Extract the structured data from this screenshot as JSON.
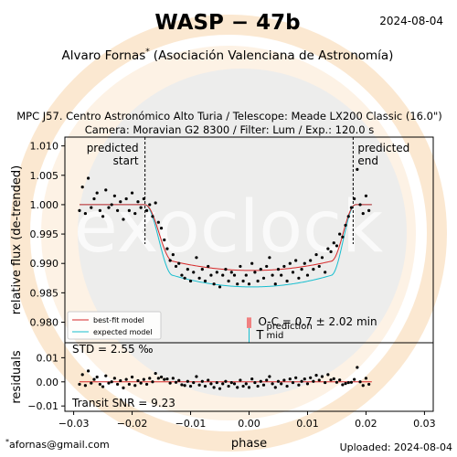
{
  "header": {
    "title": "WASP − 47b",
    "date": "2024-08-04",
    "observer": "Alvaro Fornas",
    "observer_mark": "*",
    "organization": "(Asociación Valenciana de Astronomía)",
    "obs_line1": "MPC J57. Centro Astronómico Alto Turia / Telescope: Meade LX200 Classic (16.0\")",
    "obs_line2": "Camera: Moravian G2 8300 / Filter: Lum / Exp.: 120.0 s"
  },
  "footer": {
    "email_mark": "*",
    "email": "afornas@gmail.com",
    "uploaded": "Uploaded: 2024-08-04"
  },
  "watermark": {
    "text": "exoclock",
    "logo_color": "#f5dcc0"
  },
  "chart_data": [
    {
      "type": "scatter",
      "panel": "lightcurve",
      "ylabel": "relative flux (de-trended)",
      "xlim": [
        -0.0315,
        0.0315
      ],
      "ylim": [
        0.9765,
        1.0115
      ],
      "yticks": [
        "0.980",
        "0.985",
        "0.990",
        "0.995",
        "1.000",
        "1.005",
        "1.010"
      ],
      "ytick_values": [
        0.98,
        0.985,
        0.99,
        0.995,
        1.0,
        1.005,
        1.01
      ],
      "predicted_start": {
        "x": -0.0178,
        "label_line1": "predicted",
        "label_line2": "start"
      },
      "predicted_end": {
        "x": 0.0178,
        "label_line1": "predicted",
        "label_line2": "end"
      },
      "legend": {
        "position": "lower-left",
        "entries": [
          {
            "label": "best-fit model",
            "color": "#d62728"
          },
          {
            "label": "expected model",
            "color": "#17becf"
          }
        ]
      },
      "oc_text": "O-C = 0.7 ± 2.02 min",
      "tmid": {
        "T": "T",
        "sup": "prediction",
        "sub": "mid",
        "bar_color": "#f08080",
        "line_color": "#17becf"
      },
      "model": {
        "ingress_start": -0.0178,
        "ingress_end": -0.013,
        "egress_start": 0.014,
        "egress_end": 0.0182,
        "depth_bestfit": 0.0112,
        "depth_expected": 0.014
      },
      "series": [
        {
          "name": "data",
          "color": "#000000",
          "points": [
            [
              -0.029,
              0.999
            ],
            [
              -0.0285,
              1.003
            ],
            [
              -0.028,
              0.9985
            ],
            [
              -0.0275,
              1.0045
            ],
            [
              -0.027,
              0.9995
            ],
            [
              -0.0265,
              1.001
            ],
            [
              -0.026,
              1.002
            ],
            [
              -0.0255,
              0.999
            ],
            [
              -0.025,
              0.998
            ],
            [
              -0.0245,
              1.0025
            ],
            [
              -0.024,
              0.9995
            ],
            [
              -0.0235,
              1.0
            ],
            [
              -0.023,
              1.0015
            ],
            [
              -0.0225,
              0.999
            ],
            [
              -0.022,
              1.0005
            ],
            [
              -0.0215,
              0.9975
            ],
            [
              -0.021,
              1.001
            ],
            [
              -0.0205,
              0.999
            ],
            [
              -0.02,
              1.002
            ],
            [
              -0.0195,
              0.9985
            ],
            [
              -0.019,
              1.0005
            ],
            [
              -0.0185,
              0.9995
            ],
            [
              -0.018,
              1.001
            ],
            [
              -0.0175,
              0.999
            ],
            [
              -0.017,
              1.0
            ],
            [
              -0.0165,
              0.998
            ],
            [
              -0.016,
              1.0003
            ],
            [
              -0.0155,
              0.997
            ],
            [
              -0.015,
              0.996
            ],
            [
              -0.0145,
              0.994
            ],
            [
              -0.014,
              0.9925
            ],
            [
              -0.0135,
              0.9905
            ],
            [
              -0.013,
              0.9915
            ],
            [
              -0.0125,
              0.9895
            ],
            [
              -0.012,
              0.99
            ],
            [
              -0.0115,
              0.988
            ],
            [
              -0.011,
              0.9875
            ],
            [
              -0.0105,
              0.989
            ],
            [
              -0.01,
              0.987
            ],
            [
              -0.0095,
              0.9885
            ],
            [
              -0.009,
              0.991
            ],
            [
              -0.0085,
              0.9875
            ],
            [
              -0.008,
              0.989
            ],
            [
              -0.0075,
              0.987
            ],
            [
              -0.007,
              0.9895
            ],
            [
              -0.0065,
              0.988
            ],
            [
              -0.006,
              0.9865
            ],
            [
              -0.0055,
              0.9885
            ],
            [
              -0.005,
              0.986
            ],
            [
              -0.0045,
              0.988
            ],
            [
              -0.004,
              0.989
            ],
            [
              -0.0035,
              0.987
            ],
            [
              -0.003,
              0.9885
            ],
            [
              -0.0025,
              0.988
            ],
            [
              -0.002,
              0.9865
            ],
            [
              -0.0015,
              0.9895
            ],
            [
              -0.001,
              0.987
            ],
            [
              -0.0005,
              0.988
            ],
            [
              0.0,
              0.9865
            ],
            [
              0.0005,
              0.99
            ],
            [
              0.001,
              0.9885
            ],
            [
              0.0015,
              0.987
            ],
            [
              0.002,
              0.989
            ],
            [
              0.0025,
              0.9875
            ],
            [
              0.003,
              0.9895
            ],
            [
              0.0035,
              0.991
            ],
            [
              0.004,
              0.988
            ],
            [
              0.0045,
              0.9865
            ],
            [
              0.005,
              0.989
            ],
            [
              0.0055,
              0.988
            ],
            [
              0.006,
              0.9895
            ],
            [
              0.0065,
              0.987
            ],
            [
              0.007,
              0.99
            ],
            [
              0.0075,
              0.9885
            ],
            [
              0.008,
              0.9905
            ],
            [
              0.0085,
              0.9875
            ],
            [
              0.009,
              0.989
            ],
            [
              0.0095,
              0.99
            ],
            [
              0.01,
              0.988
            ],
            [
              0.0105,
              0.9905
            ],
            [
              0.011,
              0.989
            ],
            [
              0.0115,
              0.9915
            ],
            [
              0.012,
              0.9895
            ],
            [
              0.0125,
              0.991
            ],
            [
              0.013,
              0.9885
            ],
            [
              0.0135,
              0.9925
            ],
            [
              0.014,
              0.992
            ],
            [
              0.0145,
              0.9935
            ],
            [
              0.015,
              0.993
            ],
            [
              0.0155,
              0.995
            ],
            [
              0.016,
              0.9945
            ],
            [
              0.0165,
              0.9965
            ],
            [
              0.017,
              0.998
            ],
            [
              0.0175,
              0.9995
            ],
            [
              0.018,
              1.001
            ],
            [
              0.0185,
              1.006
            ],
            [
              0.019,
              1.0
            ],
            [
              0.0195,
              0.9985
            ],
            [
              0.02,
              1.0015
            ],
            [
              0.0205,
              0.999
            ]
          ]
        }
      ]
    },
    {
      "type": "scatter",
      "panel": "residuals",
      "ylabel": "residuals",
      "xlabel": "phase",
      "xlim": [
        -0.0315,
        0.0315
      ],
      "ylim": [
        -0.0122,
        0.0162
      ],
      "yticks": [
        "−0.01",
        "0.00",
        "0.01"
      ],
      "ytick_values": [
        -0.01,
        0.0,
        0.01
      ],
      "xticks": [
        "−0.03",
        "−0.02",
        "−0.01",
        "0.00",
        "0.01",
        "0.02",
        "0.03"
      ],
      "xtick_values": [
        -0.03,
        -0.02,
        -0.01,
        0.0,
        0.01,
        0.02,
        0.03
      ],
      "std_text": "STD = 2.55 ‰",
      "snr_text": "Transit SNR = 9.23",
      "series": [
        {
          "name": "residuals",
          "color": "#000000",
          "points": [
            [
              -0.029,
              -0.001
            ],
            [
              -0.0285,
              0.003
            ],
            [
              -0.028,
              -0.0015
            ],
            [
              -0.0275,
              0.0045
            ],
            [
              -0.027,
              -0.0005
            ],
            [
              -0.0265,
              0.001
            ],
            [
              -0.026,
              0.002
            ],
            [
              -0.0255,
              -0.001
            ],
            [
              -0.025,
              -0.002
            ],
            [
              -0.0245,
              0.0025
            ],
            [
              -0.024,
              -0.0005
            ],
            [
              -0.0235,
              0.0
            ],
            [
              -0.023,
              0.0015
            ],
            [
              -0.0225,
              -0.001
            ],
            [
              -0.022,
              0.0005
            ],
            [
              -0.0215,
              -0.0025
            ],
            [
              -0.021,
              0.001
            ],
            [
              -0.0205,
              -0.001
            ],
            [
              -0.02,
              0.002
            ],
            [
              -0.0195,
              -0.0015
            ],
            [
              -0.019,
              0.0005
            ],
            [
              -0.0185,
              -0.0005
            ],
            [
              -0.018,
              0.001
            ],
            [
              -0.0175,
              -0.001
            ],
            [
              -0.017,
              0.0015
            ],
            [
              -0.0165,
              0.0
            ],
            [
              -0.016,
              0.0035
            ],
            [
              -0.0155,
              0.0015
            ],
            [
              -0.015,
              0.002
            ],
            [
              -0.0145,
              0.001
            ],
            [
              -0.014,
              0.0012
            ],
            [
              -0.0135,
              -0.0005
            ],
            [
              -0.013,
              0.0015
            ],
            [
              -0.0125,
              -0.0002
            ],
            [
              -0.012,
              0.0006
            ],
            [
              -0.0115,
              -0.0012
            ],
            [
              -0.011,
              -0.0015
            ],
            [
              -0.0105,
              0.0002
            ],
            [
              -0.01,
              -0.0018
            ],
            [
              -0.0095,
              -0.0003
            ],
            [
              -0.009,
              0.0022
            ],
            [
              -0.0085,
              -0.0013
            ],
            [
              -0.008,
              0.0002
            ],
            [
              -0.0075,
              -0.0018
            ],
            [
              -0.007,
              0.0007
            ],
            [
              -0.0065,
              -0.0008
            ],
            [
              -0.006,
              -0.0023
            ],
            [
              -0.0055,
              -0.0003
            ],
            [
              -0.005,
              -0.0028
            ],
            [
              -0.0045,
              -0.0008
            ],
            [
              -0.004,
              0.0002
            ],
            [
              -0.0035,
              -0.0018
            ],
            [
              -0.003,
              -0.0003
            ],
            [
              -0.0025,
              -0.0008
            ],
            [
              -0.002,
              -0.0023
            ],
            [
              -0.0015,
              0.0007
            ],
            [
              -0.001,
              -0.0018
            ],
            [
              -0.0005,
              -0.0008
            ],
            [
              0.0,
              -0.0023
            ],
            [
              0.0005,
              0.0012
            ],
            [
              0.001,
              -0.0003
            ],
            [
              0.0015,
              -0.0018
            ],
            [
              0.002,
              0.0002
            ],
            [
              0.0025,
              -0.0013
            ],
            [
              0.003,
              0.0007
            ],
            [
              0.0035,
              0.0022
            ],
            [
              0.004,
              -0.0008
            ],
            [
              0.0045,
              -0.0023
            ],
            [
              0.005,
              0.0002
            ],
            [
              0.0055,
              -0.0008
            ],
            [
              0.006,
              0.0007
            ],
            [
              0.0065,
              -0.0018
            ],
            [
              0.007,
              0.0012
            ],
            [
              0.0075,
              -0.0003
            ],
            [
              0.008,
              0.0017
            ],
            [
              0.0085,
              -0.0013
            ],
            [
              0.009,
              0.0002
            ],
            [
              0.0095,
              0.0012
            ],
            [
              0.01,
              -0.0008
            ],
            [
              0.0105,
              0.0017
            ],
            [
              0.011,
              0.0002
            ],
            [
              0.0115,
              0.0027
            ],
            [
              0.012,
              0.0007
            ],
            [
              0.0125,
              0.0022
            ],
            [
              0.013,
              -0.0003
            ],
            [
              0.0135,
              0.003
            ],
            [
              0.014,
              0.0008
            ],
            [
              0.0145,
              0.0013
            ],
            [
              0.015,
              -0.0002
            ],
            [
              0.0155,
              0.0008
            ],
            [
              0.016,
              -0.0012
            ],
            [
              0.0165,
              -0.0007
            ],
            [
              0.017,
              -0.0003
            ],
            [
              0.0175,
              -0.0002
            ],
            [
              0.018,
              0.001
            ],
            [
              0.0185,
              0.006
            ],
            [
              0.019,
              0.0
            ],
            [
              0.0195,
              -0.0015
            ],
            [
              0.02,
              0.0015
            ],
            [
              0.0205,
              -0.001
            ]
          ]
        }
      ]
    }
  ]
}
